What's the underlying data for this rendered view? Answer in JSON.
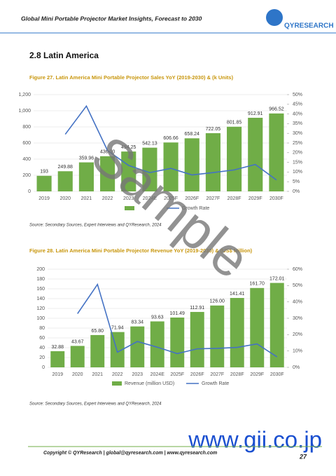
{
  "header": {
    "title": "Global Mini Portable Projector Market Insights, Forecast to 2030",
    "logo": "QYRESEARCH"
  },
  "section": "2.8  Latin America",
  "chart_data": [
    {
      "type": "bar",
      "title": "Figure 27.   Latin America Mini Portable Projector Sales YoY (2019-2030) & (k Units)",
      "categories": [
        "2019",
        "2020",
        "2021",
        "2022",
        "2023",
        "2024E",
        "2025F",
        "2026F",
        "2027F",
        "2028F",
        "2029F",
        "2030F"
      ],
      "series": [
        {
          "type": "bar",
          "color": "#70ad47",
          "values": [
            193,
            249.88,
            359.96,
            436,
            494.25,
            542.13,
            606.66,
            658.24,
            722.05,
            801.85,
            912.91,
            966.52
          ],
          "value_labels": [
            "193",
            "249.88",
            "359.96",
            "436.00",
            "494.25",
            "542.13",
            "606.66",
            "658.24",
            "722.05",
            "801.85",
            "912.91",
            "966.52"
          ]
        },
        {
          "type": "line",
          "name": "Growth Rate",
          "color": "#4472c4",
          "axis": "y2",
          "values": [
            null,
            29.5,
            44.1,
            21.1,
            13.4,
            9.7,
            11.9,
            8.5,
            9.7,
            11.1,
            13.9,
            5.9
          ]
        }
      ],
      "ylim": [
        0,
        1200
      ],
      "yticks": [
        0,
        200,
        400,
        600,
        800,
        {
          "value": 1000,
          "label": "1,000"
        },
        {
          "value": 1200,
          "label": "1,200"
        }
      ],
      "y2lim": [
        0,
        50
      ],
      "y2ticks": [
        {
          "value": 0,
          "label": "0%"
        },
        {
          "value": 5,
          "label": "5%"
        },
        {
          "value": 10,
          "label": "10%"
        },
        {
          "value": 15,
          "label": "15%"
        },
        {
          "value": 20,
          "label": "20%"
        },
        {
          "value": 25,
          "label": "25%"
        },
        {
          "value": 30,
          "label": "30%"
        },
        {
          "value": 35,
          "label": "35%"
        },
        {
          "value": 40,
          "label": "40%"
        },
        {
          "value": 45,
          "label": "45%"
        },
        {
          "value": 50,
          "label": "50%"
        }
      ],
      "grid": true,
      "source": "Source: Secondary Sources, Expert Interviews and QYResearch, 2024"
    },
    {
      "type": "bar",
      "title": "Figure 28.   Latin America Mini Portable Projector Revenue YoY (2019-2030) & (US$ Million)",
      "categories": [
        "2019",
        "2020",
        "2021",
        "2022",
        "2023",
        "2024E",
        "2025F",
        "2026F",
        "2027F",
        "2028F",
        "2029F",
        "2030F"
      ],
      "series": [
        {
          "type": "bar",
          "name": "Revenue (million USD)",
          "color": "#70ad47",
          "values": [
            32.88,
            43.67,
            65.8,
            71.94,
            83.34,
            93.63,
            101.49,
            112.91,
            126,
            141.41,
            161.7,
            172.01
          ],
          "value_labels": [
            "32.88",
            "43.67",
            "65.80",
            "71.94",
            "83.34",
            "93.63",
            "101.49",
            "112.91",
            "126.00",
            "141.41",
            "161.70",
            "172.01"
          ]
        },
        {
          "type": "line",
          "name": "Growth Rate",
          "color": "#4472c4",
          "axis": "y2",
          "values": [
            null,
            32.8,
            50.7,
            9.3,
            15.8,
            12.3,
            8.4,
            11.3,
            11.6,
            12.2,
            14.3,
            6.4
          ]
        }
      ],
      "ylim": [
        0,
        200
      ],
      "yticks": [
        0,
        20,
        40,
        60,
        80,
        100,
        120,
        140,
        160,
        180,
        200
      ],
      "y2lim": [
        0,
        60
      ],
      "y2ticks": [
        {
          "value": 0,
          "label": "0%"
        },
        {
          "value": 10,
          "label": "10%"
        },
        {
          "value": 20,
          "label": "20%"
        },
        {
          "value": 30,
          "label": "30%"
        },
        {
          "value": 40,
          "label": "40%"
        },
        {
          "value": 50,
          "label": "50%"
        },
        {
          "value": 60,
          "label": "60%"
        }
      ],
      "grid": true,
      "source": "Source: Secondary Sources, Expert Interviews and QYResearch, 2024"
    }
  ],
  "footer": {
    "copyright": "Copyright © QYResearch | global@qyresearch.com | www.qyresearch.com",
    "page": "27"
  },
  "watermark": "Sample",
  "stamp": "www.gii.co.jp"
}
